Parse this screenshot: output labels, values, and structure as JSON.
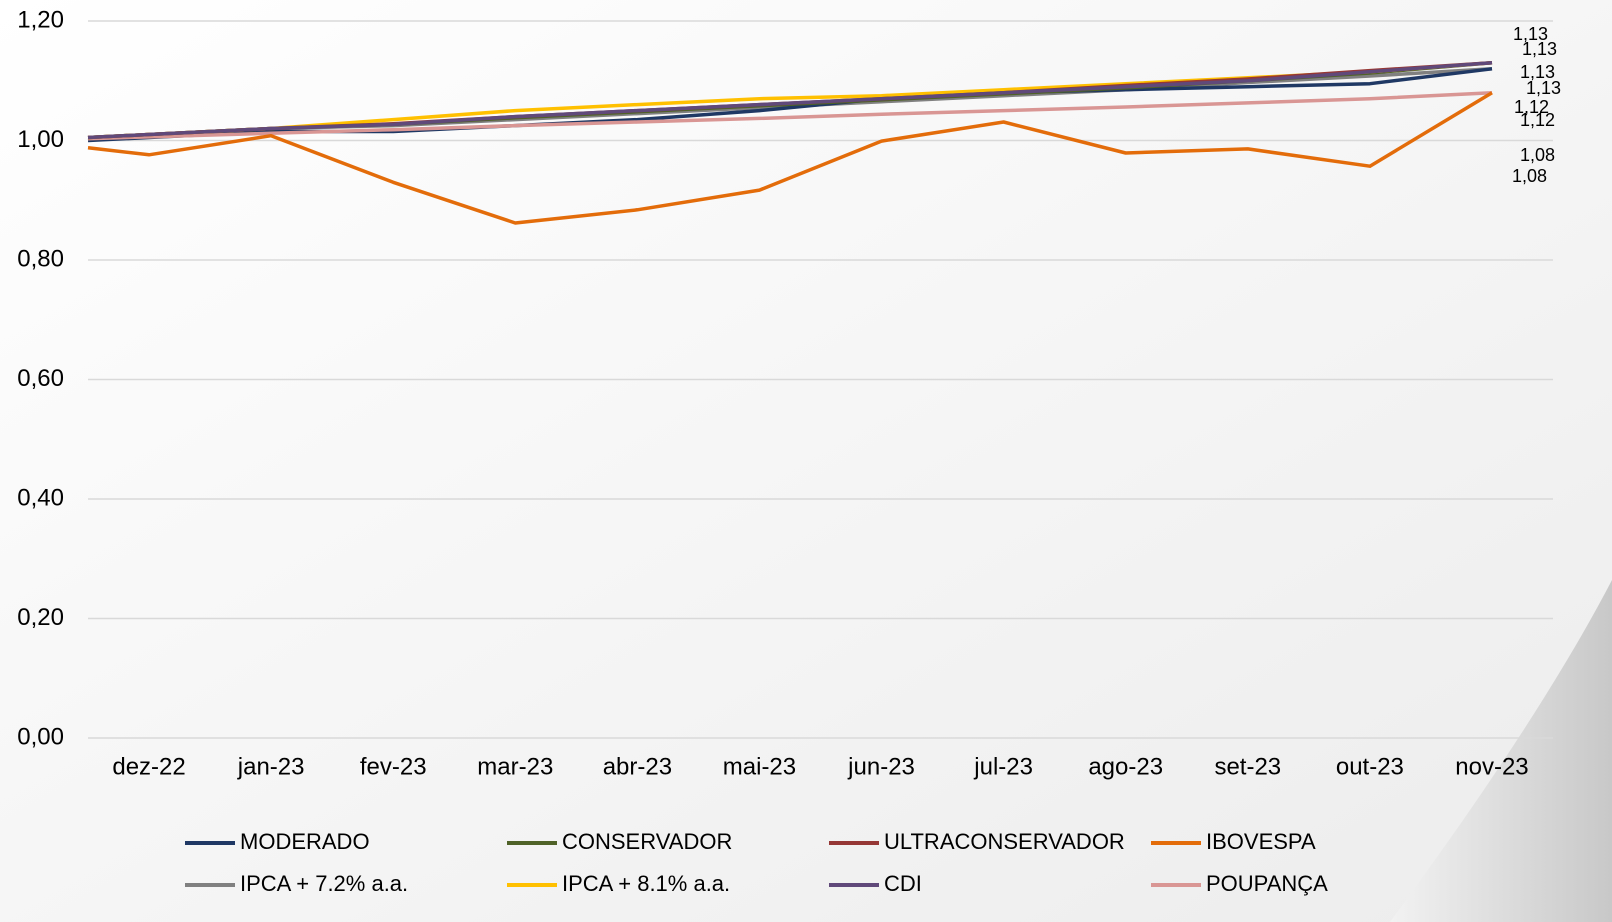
{
  "chart_data": {
    "type": "line",
    "categories": [
      null,
      "dez-22",
      "jan-23",
      "fev-23",
      "mar-23",
      "abr-23",
      "mai-23",
      "jun-23",
      "jul-23",
      "ago-23",
      "set-23",
      "out-23",
      "nov-23"
    ],
    "ylim": [
      0,
      1.2
    ],
    "yticks": [
      {
        "value": 0,
        "label": "0,00"
      },
      {
        "value": 0.2,
        "label": "0,20"
      },
      {
        "value": 0.4,
        "label": "0,40"
      },
      {
        "value": 0.6,
        "label": "0,60"
      },
      {
        "value": 0.8,
        "label": "0,80"
      },
      {
        "value": 1,
        "label": "1,00"
      },
      {
        "value": 1.2,
        "label": "1,20"
      }
    ],
    "grid": true,
    "legend": "bottom",
    "series": [
      {
        "name": "MODERADO",
        "color": "#1f3864",
        "values": [
          1.0,
          1.005,
          1.015,
          1.015,
          1.025,
          1.035,
          1.05,
          1.07,
          1.08,
          1.085,
          1.09,
          1.095,
          1.12
        ],
        "value_labels": [
          null,
          null,
          null,
          null,
          null,
          null,
          null,
          null,
          null,
          null,
          null,
          null,
          "1,12"
        ]
      },
      {
        "name": "CONSERVADOR",
        "color": "#4f6228",
        "values": [
          1.005,
          1.01,
          1.02,
          1.027,
          1.038,
          1.048,
          1.058,
          1.068,
          1.078,
          1.088,
          1.1,
          1.113,
          1.13
        ],
        "value_labels": [
          null,
          null,
          null,
          null,
          null,
          null,
          null,
          null,
          null,
          null,
          null,
          null,
          "1,13"
        ]
      },
      {
        "name": "ULTRACONSERVADOR",
        "color": "#953735",
        "values": [
          1.005,
          1.01,
          1.02,
          1.028,
          1.04,
          1.05,
          1.06,
          1.07,
          1.08,
          1.092,
          1.103,
          1.117,
          1.13
        ],
        "value_labels": [
          null,
          null,
          null,
          null,
          null,
          null,
          null,
          null,
          null,
          null,
          null,
          null,
          "1,13"
        ]
      },
      {
        "name": "IBOVESPA",
        "color": "#e36c0a",
        "values": [
          0.988,
          0.976,
          1.008,
          0.93,
          0.862,
          0.884,
          0.917,
          0.999,
          1.031,
          0.979,
          0.986,
          0.957,
          1.08
        ],
        "value_labels": [
          null,
          null,
          null,
          null,
          null,
          null,
          null,
          null,
          null,
          null,
          null,
          null,
          "1,08"
        ]
      },
      {
        "name": "IPCA + 7.2% a.a.",
        "color": "#808080",
        "values": [
          1.005,
          1.01,
          1.02,
          1.025,
          1.035,
          1.045,
          1.055,
          1.065,
          1.075,
          1.085,
          1.097,
          1.108,
          1.12
        ],
        "value_labels": [
          null,
          null,
          null,
          null,
          null,
          null,
          null,
          null,
          null,
          null,
          null,
          null,
          "1,12"
        ]
      },
      {
        "name": "IPCA + 8.1% a.a.",
        "color": "#ffc000",
        "values": [
          1.005,
          1.01,
          1.02,
          1.035,
          1.05,
          1.06,
          1.07,
          1.075,
          1.085,
          1.095,
          1.105,
          1.115,
          1.13
        ],
        "value_labels": [
          null,
          null,
          null,
          null,
          null,
          null,
          null,
          null,
          null,
          null,
          null,
          null,
          "1,13"
        ]
      },
      {
        "name": "CDI",
        "color": "#60497a",
        "values": [
          1.005,
          1.01,
          1.02,
          1.027,
          1.04,
          1.05,
          1.06,
          1.07,
          1.08,
          1.09,
          1.1,
          1.115,
          1.13
        ],
        "value_labels": [
          null,
          null,
          null,
          null,
          null,
          null,
          null,
          null,
          null,
          null,
          null,
          null,
          "1,13"
        ]
      },
      {
        "name": "POUPANÇA",
        "color": "#d99694",
        "values": [
          1.003,
          1.006,
          1.012,
          1.018,
          1.025,
          1.031,
          1.037,
          1.044,
          1.05,
          1.056,
          1.063,
          1.07,
          1.08
        ],
        "value_labels": [
          null,
          null,
          null,
          null,
          null,
          null,
          null,
          null,
          null,
          null,
          null,
          null,
          "1,08"
        ]
      }
    ]
  }
}
